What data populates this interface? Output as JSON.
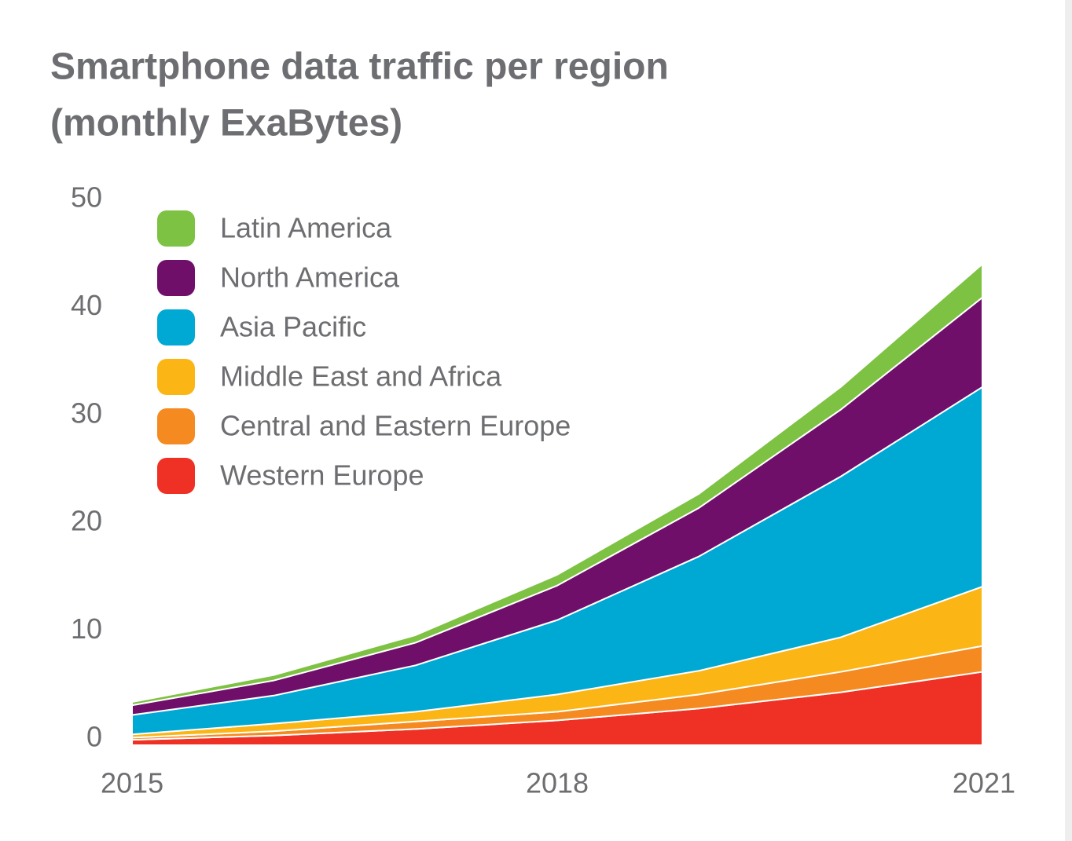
{
  "chart_data": {
    "type": "stacked_area",
    "title": "Smartphone data traffic per region",
    "subtitle": "(monthly ExaBytes)",
    "x": [
      2015,
      2016,
      2017,
      2018,
      2019,
      2020,
      2021
    ],
    "xlim": [
      2015,
      2021
    ],
    "xticks": [
      2015,
      2018,
      2021
    ],
    "ylim": [
      0,
      50
    ],
    "yticks": [
      0,
      10,
      20,
      30,
      40,
      50
    ],
    "legend": "upper left",
    "series": [
      {
        "name": "Western Europe",
        "color": "#ee3124",
        "values": [
          0.5,
          0.9,
          1.5,
          2.3,
          3.4,
          4.9,
          6.8
        ]
      },
      {
        "name": "Central and Eastern Europe",
        "color": "#f58a20",
        "values": [
          0.2,
          0.4,
          0.7,
          0.8,
          1.3,
          1.9,
          2.4
        ]
      },
      {
        "name": "Middle East and Africa",
        "color": "#fbb616",
        "values": [
          0.3,
          0.7,
          0.9,
          1.6,
          2.2,
          3.2,
          5.5
        ]
      },
      {
        "name": "Asia Pacific",
        "color": "#00a9d4",
        "values": [
          1.8,
          2.6,
          4.3,
          6.9,
          10.6,
          14.9,
          18.5
        ]
      },
      {
        "name": "North America",
        "color": "#6f0f6a",
        "values": [
          0.9,
          1.4,
          2.1,
          3.2,
          4.5,
          6.2,
          8.3
        ]
      },
      {
        "name": "Latin America",
        "color": "#7dc242",
        "values": [
          0.3,
          0.5,
          0.7,
          1.0,
          1.3,
          2.1,
          3.1
        ]
      }
    ]
  }
}
